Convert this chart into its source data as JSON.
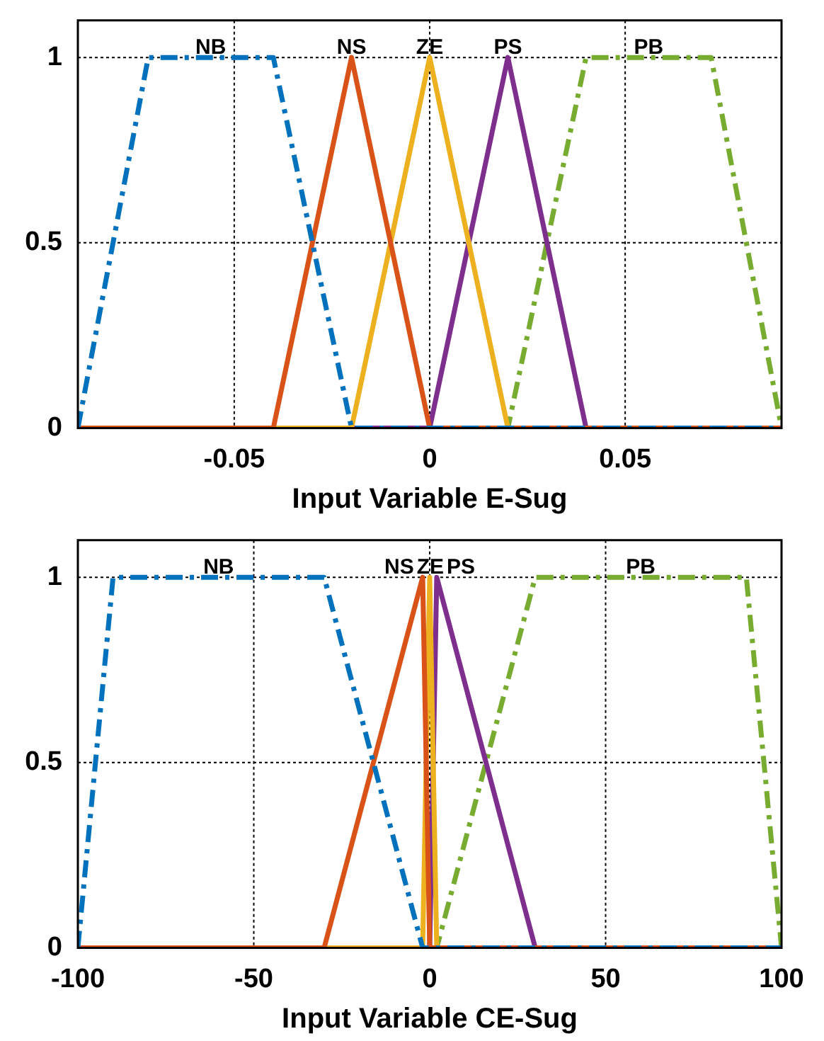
{
  "chart_data": [
    {
      "type": "line",
      "xlabel": "Input Variable E-Sug",
      "xlim": [
        -0.09,
        0.09
      ],
      "xticks": [
        -0.05,
        0,
        0.05
      ],
      "ylim": [
        0,
        1.1
      ],
      "yticks": [
        0,
        0.5,
        1
      ],
      "grid": true,
      "legend": false,
      "marker": "none",
      "series": [
        {
          "name": "NB",
          "color": "#0072bd",
          "line_style": "dashed",
          "x": [
            -0.09,
            -0.072,
            -0.04,
            -0.02,
            0.09
          ],
          "values": [
            0,
            1,
            1,
            0,
            0
          ]
        },
        {
          "name": "NS",
          "color": "#d95319",
          "line_style": "solid",
          "x": [
            -0.09,
            -0.04,
            -0.02,
            0,
            0.09
          ],
          "values": [
            0,
            0,
            1,
            0,
            0
          ]
        },
        {
          "name": "ZE",
          "color": "#edb120",
          "line_style": "solid",
          "x": [
            -0.09,
            -0.02,
            0,
            0.02,
            0.09
          ],
          "values": [
            0,
            0,
            1,
            0,
            0
          ]
        },
        {
          "name": "PS",
          "color": "#7e2f8e",
          "line_style": "solid",
          "x": [
            -0.09,
            0,
            0.02,
            0.04,
            0.09
          ],
          "values": [
            0,
            0,
            1,
            0,
            0
          ]
        },
        {
          "name": "PB",
          "color": "#77ac30",
          "line_style": "dashed",
          "x": [
            -0.09,
            0.02,
            0.04,
            0.072,
            0.09
          ],
          "values": [
            0,
            0,
            1,
            1,
            0
          ]
        }
      ]
    },
    {
      "type": "line",
      "xlabel": "Input Variable CE-Sug",
      "xlim": [
        -100,
        100
      ],
      "xticks": [
        -100,
        -50,
        0,
        50,
        100
      ],
      "ylim": [
        0,
        1.1
      ],
      "yticks": [
        0,
        0.5,
        1
      ],
      "grid": true,
      "legend": false,
      "marker": "none",
      "series": [
        {
          "name": "NB",
          "color": "#0072bd",
          "line_style": "dashed",
          "x": [
            -100,
            -90,
            -30,
            -2,
            100
          ],
          "values": [
            0,
            1,
            1,
            0,
            0
          ]
        },
        {
          "name": "NS",
          "color": "#d95319",
          "line_style": "solid",
          "x": [
            -100,
            -30,
            -2,
            0,
            100
          ],
          "values": [
            0,
            0,
            1,
            0,
            0
          ]
        },
        {
          "name": "ZE",
          "color": "#edb120",
          "line_style": "solid",
          "x": [
            -100,
            -2,
            0,
            2,
            100
          ],
          "values": [
            0,
            0,
            1,
            0,
            0
          ]
        },
        {
          "name": "PS",
          "color": "#7e2f8e",
          "line_style": "solid",
          "x": [
            -100,
            0,
            2,
            30,
            100
          ],
          "values": [
            0,
            0,
            1,
            0,
            0
          ]
        },
        {
          "name": "PB",
          "color": "#77ac30",
          "line_style": "dashed",
          "x": [
            -100,
            2,
            30,
            90,
            100
          ],
          "values": [
            0,
            0,
            1,
            1,
            0
          ]
        }
      ]
    }
  ]
}
